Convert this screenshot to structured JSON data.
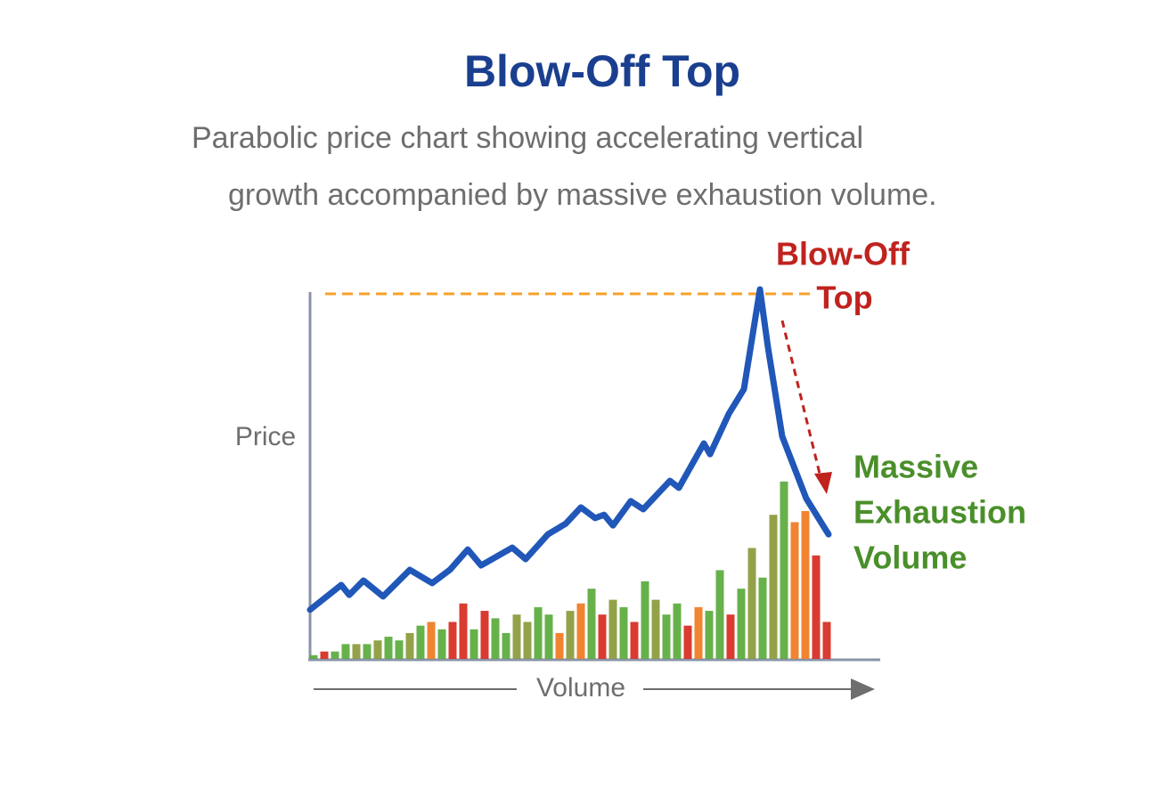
{
  "chart_data": {
    "type": "line",
    "title": "Blow-Off Top",
    "subtitle": [
      "Parabolic price chart showing accelerating vertical",
      "growth accompanied by massive exhaustion volume."
    ],
    "y_label": "Price",
    "x_label": "Volume",
    "peak_label": [
      "Blow-Off",
      "Top"
    ],
    "volume_label": [
      "Massive",
      "Exhaustion",
      "Volume"
    ],
    "line_color": "#2057b8",
    "xlim": [
      0,
      64
    ],
    "ylim": [
      0,
      100
    ],
    "x": [
      0,
      3.5,
      4.4,
      6,
      8.2,
      11.2,
      13.7,
      15.7,
      17.7,
      19.2,
      22.7,
      24.2,
      26.7,
      28.7,
      30.4,
      32,
      33,
      34,
      36,
      37.4,
      40.4,
      41.4,
      44.2,
      44.9,
      47,
      48.7,
      50.5,
      51.4,
      53,
      55.7,
      58.2
    ],
    "values": [
      13.3,
      20,
      17.3,
      21.2,
      16.9,
      24.1,
      20.5,
      24.1,
      29.6,
      25.3,
      30.1,
      27,
      33.7,
      36.6,
      41,
      38.1,
      39,
      36.1,
      42.7,
      40.5,
      48.2,
      46.3,
      58.3,
      55.4,
      66.3,
      73,
      100,
      84.3,
      60.2,
      43.4,
      33.7
    ],
    "volume": {
      "x": [
        0.4,
        1.6,
        2.8,
        4,
        5.2,
        6.4,
        7.6,
        8.8,
        10,
        11.2,
        12.4,
        13.6,
        14.8,
        16,
        17.2,
        18.4,
        19.6,
        20.8,
        22,
        23.2,
        24.4,
        25.6,
        26.8,
        28,
        29.2,
        30.4,
        31.6,
        32.8,
        34,
        35.2,
        36.4,
        37.6,
        38.8,
        40,
        41.2,
        42.4,
        43.6,
        44.8,
        46,
        47.2,
        48.4,
        49.6,
        50.8,
        52,
        53.2,
        54.4,
        55.6,
        56.8,
        58
      ],
      "values": [
        1,
        2,
        2,
        4,
        4,
        4,
        5,
        6,
        5,
        7,
        9,
        10,
        8,
        10,
        15,
        8,
        13,
        11,
        7,
        12,
        10,
        14,
        12,
        7,
        13,
        15,
        19,
        12,
        16,
        14,
        10,
        21,
        16,
        12,
        15,
        9,
        14,
        13,
        24,
        12,
        19,
        30,
        22,
        39,
        48,
        37,
        40,
        28,
        10
      ],
      "colors": [
        "#5aaa3c",
        "#d62a20",
        "#5aaa3c",
        "#5aaa3c",
        "#8a9a3a",
        "#5aaa3c",
        "#8a9a3a",
        "#5aaa3c",
        "#5aaa3c",
        "#8a9a3a",
        "#5aaa3c",
        "#f07a20",
        "#5aaa3c",
        "#d62a20",
        "#d62a20",
        "#5aaa3c",
        "#d62a20",
        "#5aaa3c",
        "#5aaa3c",
        "#8a9a3a",
        "#8a9a3a",
        "#5aaa3c",
        "#5aaa3c",
        "#f07a20",
        "#8a9a3a",
        "#f07a20",
        "#5aaa3c",
        "#d62a20",
        "#8a9a3a",
        "#5aaa3c",
        "#d62a20",
        "#5aaa3c",
        "#8a9a3a",
        "#5aaa3c",
        "#5aaa3c",
        "#d62a20",
        "#f07a20",
        "#5aaa3c",
        "#5aaa3c",
        "#d62a20",
        "#5aaa3c",
        "#8a9a3a",
        "#5aaa3c",
        "#8a9a3a",
        "#5aaa3c",
        "#f07a20",
        "#f07a20",
        "#d62a20",
        "#d62a20"
      ]
    }
  }
}
